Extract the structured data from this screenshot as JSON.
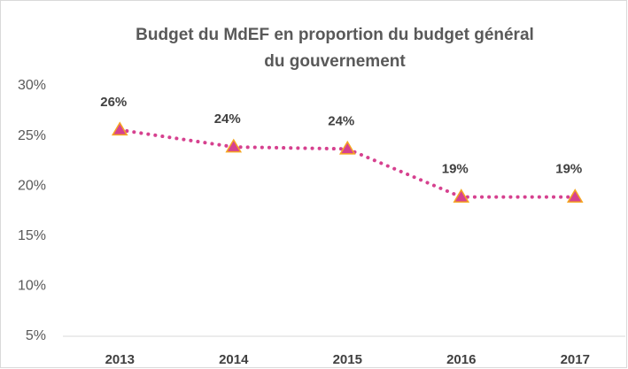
{
  "chart_data": {
    "type": "line",
    "title": [
      "Budget du MdEF en proportion du budget général",
      "du gouvernement"
    ],
    "categories": [
      "2013",
      "2014",
      "2015",
      "2016",
      "2017"
    ],
    "series": [
      {
        "name": "Budget du MdEF",
        "color": "#d6418f",
        "marker_fill": "#d6418f",
        "marker_edge": "#f5a623",
        "values": [
          25.6,
          23.9,
          23.7,
          18.9,
          18.9
        ],
        "value_labels": [
          "26%",
          "24%",
          "24%",
          "19%",
          "19%"
        ]
      }
    ],
    "ylim": [
      5,
      30
    ],
    "yticks": [
      {
        "value": 5,
        "label": "5%"
      },
      {
        "value": 10,
        "label": "10%"
      },
      {
        "value": 15,
        "label": "15%"
      },
      {
        "value": 20,
        "label": "20%"
      },
      {
        "value": 25,
        "label": "25%"
      },
      {
        "value": 30,
        "label": "30%"
      }
    ],
    "grid": false
  }
}
